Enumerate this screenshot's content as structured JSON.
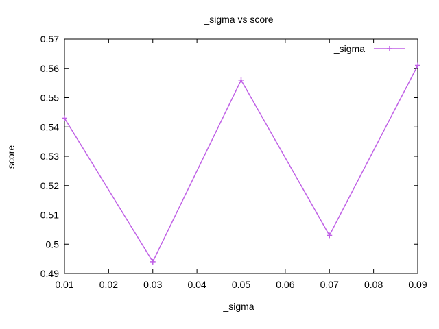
{
  "chart_data": {
    "type": "line",
    "title": "_sigma vs score",
    "xlabel": "_sigma",
    "ylabel": "score",
    "xlim": [
      0.01,
      0.09
    ],
    "ylim": [
      0.49,
      0.57
    ],
    "x_ticks": [
      "0.01",
      "0.02",
      "0.03",
      "0.04",
      "0.05",
      "0.06",
      "0.07",
      "0.08",
      "0.09"
    ],
    "y_ticks": [
      "0.49",
      "0.5",
      "0.51",
      "0.52",
      "0.53",
      "0.54",
      "0.55",
      "0.56",
      "0.57"
    ],
    "grid": false,
    "legend_position": "top-right",
    "series": [
      {
        "name": "_sigma",
        "color": "#c061e6",
        "marker": "plus",
        "x": [
          0.01,
          0.03,
          0.05,
          0.07,
          0.09
        ],
        "y": [
          0.543,
          0.494,
          0.556,
          0.503,
          0.561
        ]
      }
    ]
  }
}
